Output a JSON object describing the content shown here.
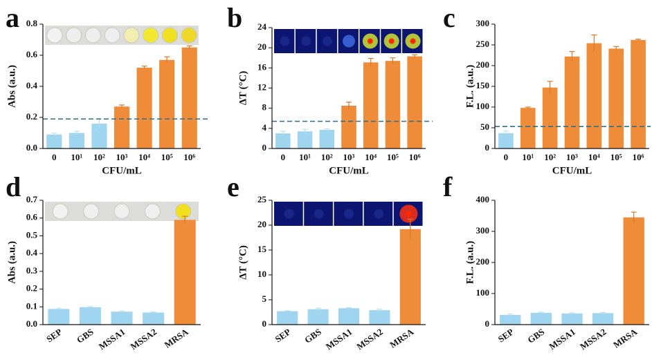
{
  "chart_data": [
    {
      "type": "bar",
      "panel_label": "a",
      "ylabel": "Abs (a.u.)",
      "xlabel": "CFU/mL",
      "categories": [
        "0",
        "10¹",
        "10²",
        "10³",
        "10⁴",
        "10⁵",
        "10⁶"
      ],
      "values": [
        0.09,
        0.1,
        0.16,
        0.27,
        0.52,
        0.57,
        0.65
      ],
      "errors": [
        0.01,
        0.01,
        0.03,
        0.01,
        0.01,
        0.02,
        0.01
      ],
      "colors": [
        "#9fd5ee",
        "#9fd5ee",
        "#9fd5ee",
        "#ee8c3a",
        "#ee8c3a",
        "#ee8c3a",
        "#ee8c3a"
      ],
      "reference_line": 0.19,
      "ylim": [
        0,
        0.8
      ],
      "yticks": [
        {
          "value": 0,
          "label": "0.0"
        },
        0.2,
        0.4,
        0.6,
        0.8
      ]
    },
    {
      "type": "bar",
      "panel_label": "b",
      "ylabel": "ΔT (°C)",
      "xlabel": "CFU/mL",
      "categories": [
        "0",
        "10¹",
        "10²",
        "10³",
        "10⁴",
        "10⁵",
        "10⁶"
      ],
      "values": [
        3.0,
        3.4,
        3.7,
        8.5,
        17.1,
        17.4,
        18.3
      ],
      "errors": [
        0.4,
        0.4,
        0.2,
        0.7,
        0.8,
        0.6,
        0.3
      ],
      "colors": [
        "#9fd5ee",
        "#9fd5ee",
        "#9fd5ee",
        "#ee8c3a",
        "#ee8c3a",
        "#ee8c3a",
        "#ee8c3a"
      ],
      "reference_line": 5.4,
      "ylim": [
        0,
        24
      ],
      "yticks": [
        0,
        4,
        8,
        12,
        16,
        20,
        24
      ]
    },
    {
      "type": "bar",
      "panel_label": "c",
      "ylabel": "F.L. (a.u.)",
      "xlabel": "CFU/mL",
      "categories": [
        "0",
        "10¹",
        "10²",
        "10³",
        "10⁴",
        "10⁵",
        "10⁶"
      ],
      "values": [
        37,
        98,
        147,
        222,
        254,
        241,
        262
      ],
      "errors": [
        5,
        2,
        15,
        12,
        20,
        5,
        2
      ],
      "colors": [
        "#9fd5ee",
        "#ee8c3a",
        "#ee8c3a",
        "#ee8c3a",
        "#ee8c3a",
        "#ee8c3a",
        "#ee8c3a"
      ],
      "reference_line": 53,
      "ylim": [
        0,
        300
      ],
      "yticks": [
        0,
        50,
        100,
        150,
        200,
        250,
        300
      ]
    },
    {
      "type": "bar",
      "panel_label": "d",
      "ylabel": "Abs (a.u.)",
      "categories": [
        "SEP",
        "GBS",
        "MSSA1",
        "MSSA2",
        "MRSA"
      ],
      "values": [
        0.088,
        0.098,
        0.073,
        0.068,
        0.59
      ],
      "errors": [
        0.005,
        0.003,
        0.004,
        0.003,
        0.02
      ],
      "colors": [
        "#9fd5ee",
        "#9fd5ee",
        "#9fd5ee",
        "#9fd5ee",
        "#ee8c3a"
      ],
      "ylim": [
        0,
        0.7
      ],
      "yticks": [
        {
          "value": 0,
          "label": "0.0"
        },
        0.1,
        0.2,
        0.3,
        0.4,
        0.5,
        0.6,
        0.7
      ]
    },
    {
      "type": "bar",
      "panel_label": "e",
      "ylabel": "ΔT (°C)",
      "categories": [
        "SEP",
        "GBS",
        "MSSA1",
        "MSSA2",
        "MRSA"
      ],
      "values": [
        2.7,
        3.1,
        3.3,
        2.9,
        19.2
      ],
      "errors": [
        0.1,
        0.2,
        0.1,
        0.2,
        2.0
      ],
      "colors": [
        "#9fd5ee",
        "#9fd5ee",
        "#9fd5ee",
        "#9fd5ee",
        "#ee8c3a"
      ],
      "ylim": [
        0,
        25
      ],
      "yticks": [
        0,
        5,
        10,
        15,
        20,
        25
      ]
    },
    {
      "type": "bar",
      "panel_label": "f",
      "ylabel": "F.L. (a.u.)",
      "categories": [
        "SEP",
        "GBS",
        "MSSA1",
        "MSSA2",
        "MRSA"
      ],
      "values": [
        31,
        38,
        36,
        37,
        345
      ],
      "errors": [
        3,
        2,
        2,
        2,
        17
      ],
      "colors": [
        "#9fd5ee",
        "#9fd5ee",
        "#9fd5ee",
        "#9fd5ee",
        "#ee8c3a"
      ],
      "ylim": [
        0,
        400
      ],
      "yticks": [
        0,
        100,
        200,
        300,
        400
      ]
    }
  ]
}
